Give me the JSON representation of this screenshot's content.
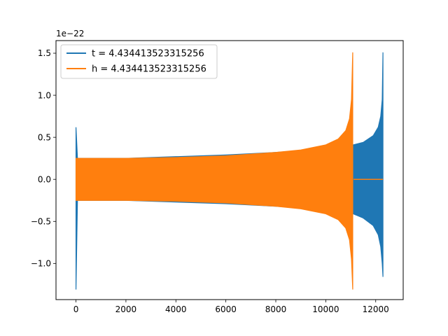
{
  "chart_data": {
    "type": "line",
    "title": "",
    "xlabel": "",
    "ylabel": "",
    "offset_text": "1e−22",
    "xlim": [
      -800,
      13100
    ],
    "ylim": [
      -1.43,
      1.65
    ],
    "x_ticks": [
      0,
      2000,
      4000,
      6000,
      8000,
      10000,
      12000
    ],
    "x_tick_labels": [
      "0",
      "2000",
      "4000",
      "6000",
      "8000",
      "10000",
      "12000"
    ],
    "y_ticks": [
      -1.0,
      -0.5,
      0.0,
      0.5,
      1.0,
      1.5
    ],
    "y_tick_labels": [
      "−1.0",
      "−0.5",
      "0.0",
      "0.5",
      "1.0",
      "1.5"
    ],
    "grid": false,
    "legend_position": "upper-left",
    "series": [
      {
        "name": "t = 4.434413523315256",
        "color": "#1f77b4",
        "envelope": [
          {
            "x": 0,
            "upper": 0.62,
            "lower": -1.31
          },
          {
            "x": 60,
            "upper": 0.25,
            "lower": -0.25
          },
          {
            "x": 2000,
            "upper": 0.25,
            "lower": -0.25
          },
          {
            "x": 4000,
            "upper": 0.27,
            "lower": -0.27
          },
          {
            "x": 6000,
            "upper": 0.29,
            "lower": -0.29
          },
          {
            "x": 8000,
            "upper": 0.32,
            "lower": -0.32
          },
          {
            "x": 10000,
            "upper": 0.36,
            "lower": -0.36
          },
          {
            "x": 11100,
            "upper": 0.41,
            "lower": -0.41
          },
          {
            "x": 11500,
            "upper": 0.44,
            "lower": -0.46
          },
          {
            "x": 11900,
            "upper": 0.52,
            "lower": -0.55
          },
          {
            "x": 12100,
            "upper": 0.62,
            "lower": -0.66
          },
          {
            "x": 12200,
            "upper": 0.75,
            "lower": -0.8
          },
          {
            "x": 12260,
            "upper": 0.95,
            "lower": -1.0
          },
          {
            "x": 12290,
            "upper": 1.51,
            "lower": -1.16
          }
        ]
      },
      {
        "name": "h = 4.434413523315256",
        "color": "#ff7f0e",
        "envelope": [
          {
            "x": 0,
            "upper": 0.25,
            "lower": -0.25
          },
          {
            "x": 2000,
            "upper": 0.25,
            "lower": -0.25
          },
          {
            "x": 4000,
            "upper": 0.26,
            "lower": -0.26
          },
          {
            "x": 6000,
            "upper": 0.28,
            "lower": -0.28
          },
          {
            "x": 8000,
            "upper": 0.32,
            "lower": -0.32
          },
          {
            "x": 9000,
            "upper": 0.35,
            "lower": -0.35
          },
          {
            "x": 10000,
            "upper": 0.41,
            "lower": -0.41
          },
          {
            "x": 10500,
            "upper": 0.48,
            "lower": -0.48
          },
          {
            "x": 10800,
            "upper": 0.58,
            "lower": -0.58
          },
          {
            "x": 10950,
            "upper": 0.72,
            "lower": -0.72
          },
          {
            "x": 11030,
            "upper": 0.95,
            "lower": -0.95
          },
          {
            "x": 11080,
            "upper": 1.51,
            "lower": -1.31
          }
        ],
        "tail": {
          "x_start": 11110,
          "x_end": 12290,
          "value": 0.0
        }
      }
    ]
  }
}
